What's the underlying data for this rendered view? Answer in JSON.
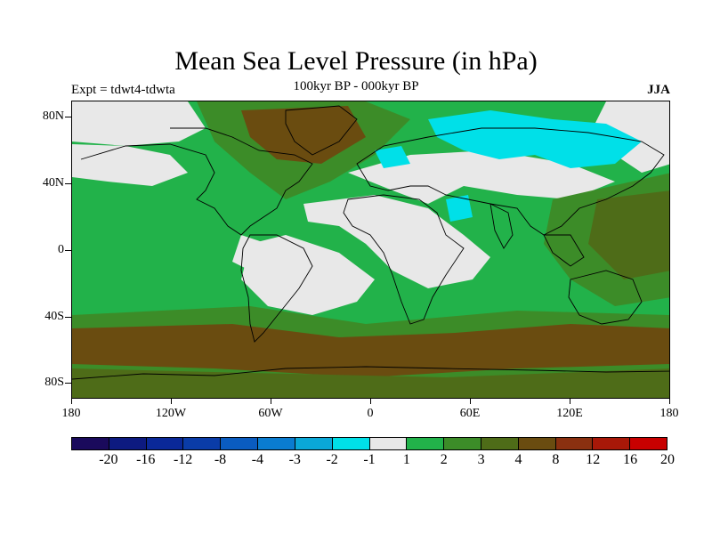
{
  "title": "Mean Sea Level Pressure (in hPa)",
  "subtitle_left": "Expt = tdwt4-tdwta",
  "subtitle_center": "100kyr BP - 000kyr BP",
  "subtitle_right": "JJA",
  "lat_labels": [
    "80N",
    "40N",
    "0",
    "40S",
    "80S"
  ],
  "lon_labels": [
    "180",
    "120W",
    "60W",
    "0",
    "60E",
    "120E",
    "180"
  ],
  "colorbar": {
    "labels": [
      "-20",
      "-16",
      "-12",
      "-8",
      "-4",
      "-3",
      "-2",
      "-1",
      "1",
      "2",
      "3",
      "4",
      "8",
      "12",
      "16",
      "20"
    ],
    "colors": [
      "#1a0a5c",
      "#0d1a80",
      "#0a2898",
      "#0a3ca8",
      "#0a5cc0",
      "#0a7cd0",
      "#0aa8d8",
      "#00e0e8",
      "#e8e8e8",
      "#22b24a",
      "#3c8c28",
      "#4e6c18",
      "#6a4c10",
      "#8a3010",
      "#a81808",
      "#c80000"
    ]
  },
  "colors": {
    "neutral": "#e8e8e8",
    "pos1": "#22b24a",
    "pos2": "#3c8c28",
    "pos3": "#4e6c18",
    "pos4": "#6a4c10",
    "neg1": "#00e0e8"
  }
}
